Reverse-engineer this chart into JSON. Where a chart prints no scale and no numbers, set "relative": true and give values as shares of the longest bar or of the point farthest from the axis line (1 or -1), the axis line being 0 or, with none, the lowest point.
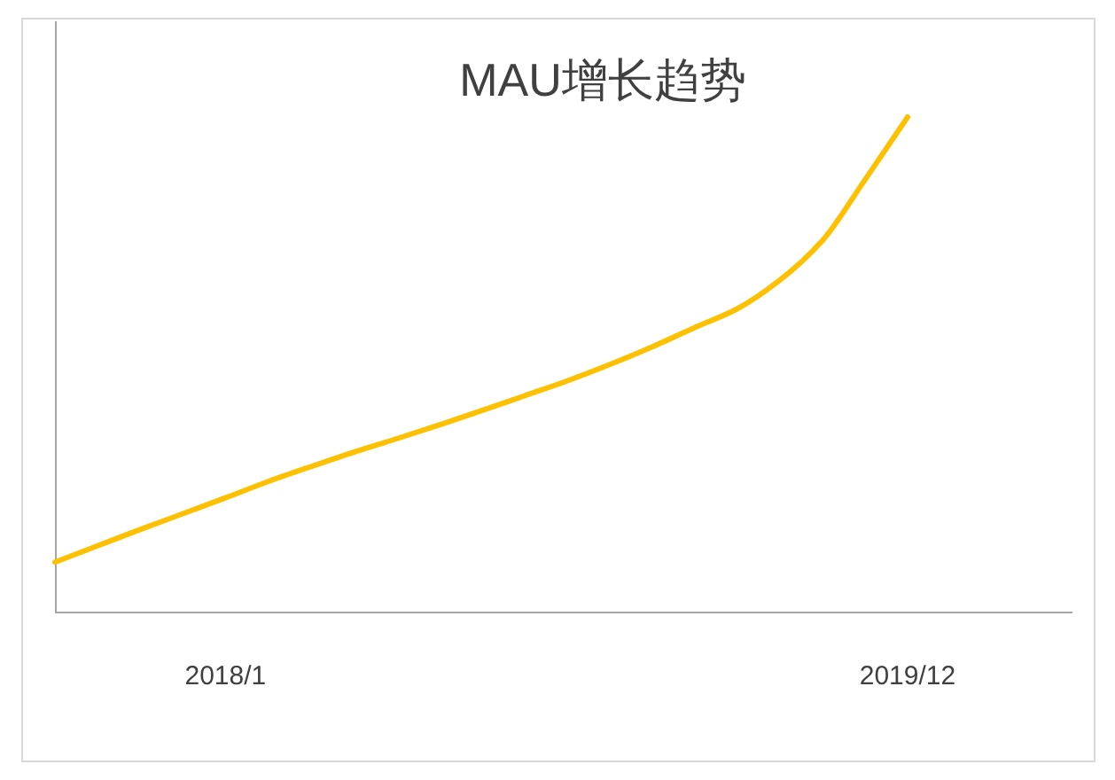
{
  "chart_data": {
    "type": "line",
    "title": "MAU增长趋势",
    "relative": true,
    "categories": [
      null,
      null,
      null,
      null,
      "2018/1",
      null,
      null,
      null,
      null,
      null,
      null,
      null,
      null,
      null,
      null,
      null,
      null,
      null,
      null,
      null,
      "2019/12"
    ],
    "series": [
      {
        "color": "#ffc000",
        "values": [
          0.1,
          0.133,
          0.166,
          0.198,
          0.23,
          0.263,
          0.293,
          0.322,
          0.349,
          0.377,
          0.406,
          0.436,
          0.466,
          0.499,
          0.535,
          0.574,
          0.612,
          0.67,
          0.75,
          0.873,
          1.0
        ]
      }
    ]
  }
}
